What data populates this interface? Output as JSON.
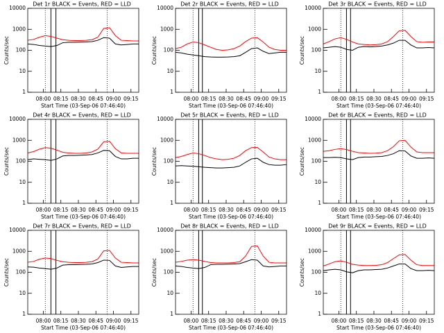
{
  "chart_data": [
    {
      "type": "line",
      "title": "Det 1r BLACK = Events, RED = LLD",
      "xlabel": "Start Time (03-Sep-06 07:46:40)",
      "ylabel": "Counts/sec",
      "ylog": true,
      "xlim": [
        0,
        5700
      ],
      "xticks": [
        {
          "value": 800,
          "label": "08:00"
        },
        {
          "value": 1700,
          "label": "08:15"
        },
        {
          "value": 2600,
          "label": "08:30"
        },
        {
          "value": 3500,
          "label": "08:45"
        },
        {
          "value": 4400,
          "label": "09:00"
        },
        {
          "value": 5300,
          "label": "09:15"
        }
      ],
      "ylim": [
        1,
        10000
      ],
      "yticks": [
        1,
        10,
        100,
        1000,
        10000
      ],
      "dotted_lines": [
        900,
        4080
      ],
      "solid_lines": [
        1190,
        1447
      ],
      "x": [
        0,
        300,
        600,
        900,
        1200,
        1500,
        1800,
        2100,
        2400,
        2700,
        3000,
        3300,
        3600,
        3900,
        4200,
        4500,
        4800,
        5100,
        5400,
        5700
      ],
      "series": [
        {
          "name": "BLACK",
          "color": "#000000",
          "values": [
            200,
            190,
            170,
            160,
            150,
            170,
            230,
            240,
            240,
            245,
            250,
            260,
            300,
            400,
            380,
            200,
            180,
            190,
            200,
            200
          ]
        },
        {
          "name": "RED",
          "color": "#ff0000",
          "values": [
            300,
            330,
            420,
            500,
            460,
            380,
            320,
            300,
            290,
            290,
            300,
            320,
            420,
            1100,
            1200,
            500,
            300,
            290,
            280,
            280
          ]
        }
      ]
    },
    {
      "type": "line",
      "title": "Det 2r BLACK = Events, RED = LLD",
      "xlabel": "Start Time (03-Sep-06 07:46:40)",
      "ylabel": "Counts/sec",
      "ylog": true,
      "xlim": [
        0,
        5700
      ],
      "xticks": [
        {
          "value": 800,
          "label": "08:00"
        },
        {
          "value": 1700,
          "label": "08:15"
        },
        {
          "value": 2600,
          "label": "08:30"
        },
        {
          "value": 3500,
          "label": "08:45"
        },
        {
          "value": 4400,
          "label": "09:00"
        },
        {
          "value": 5300,
          "label": "09:15"
        }
      ],
      "ylim": [
        1,
        10000
      ],
      "yticks": [
        1,
        10,
        100,
        1000,
        10000
      ],
      "dotted_lines": [
        900,
        4080
      ],
      "solid_lines": [
        1190,
        1380
      ],
      "x": [
        0,
        300,
        600,
        900,
        1200,
        1500,
        1800,
        2100,
        2400,
        2700,
        3000,
        3300,
        3600,
        3900,
        4200,
        4500,
        4800,
        5100,
        5400,
        5700
      ],
      "series": [
        {
          "name": "BLACK",
          "color": "#000000",
          "values": [
            80,
            75,
            65,
            60,
            55,
            50,
            48,
            47,
            47,
            48,
            50,
            55,
            80,
            120,
            130,
            90,
            70,
            75,
            80,
            80
          ]
        },
        {
          "name": "RED",
          "color": "#ff0000",
          "values": [
            120,
            140,
            200,
            250,
            230,
            180,
            140,
            110,
            100,
            105,
            120,
            160,
            260,
            380,
            400,
            250,
            140,
            110,
            100,
            100
          ]
        }
      ]
    },
    {
      "type": "line",
      "title": "Det 3r BLACK = Events, RED = LLD",
      "xlabel": "Start Time (03-Sep-06 07:46:40)",
      "ylabel": "Counts/sec",
      "ylog": true,
      "xlim": [
        0,
        5700
      ],
      "xticks": [
        {
          "value": 800,
          "label": "08:00"
        },
        {
          "value": 1700,
          "label": "08:15"
        },
        {
          "value": 2600,
          "label": "08:30"
        },
        {
          "value": 3500,
          "label": "08:45"
        },
        {
          "value": 4400,
          "label": "09:00"
        },
        {
          "value": 5300,
          "label": "09:15"
        }
      ],
      "ylim": [
        1,
        10000
      ],
      "yticks": [
        1,
        10,
        100,
        1000,
        10000
      ],
      "dotted_lines": [
        900,
        4080
      ],
      "solid_lines": [
        1190,
        1400
      ],
      "x": [
        0,
        300,
        600,
        900,
        1200,
        1500,
        1800,
        2100,
        2400,
        2700,
        3000,
        3300,
        3600,
        3900,
        4200,
        4500,
        4800,
        5100,
        5400,
        5700
      ],
      "series": [
        {
          "name": "BLACK",
          "color": "#000000",
          "values": [
            130,
            140,
            150,
            140,
            110,
            100,
            140,
            150,
            145,
            150,
            160,
            180,
            220,
            300,
            300,
            180,
            130,
            130,
            135,
            130
          ]
        },
        {
          "name": "RED",
          "color": "#ff0000",
          "values": [
            200,
            260,
            350,
            400,
            330,
            250,
            200,
            190,
            180,
            185,
            200,
            260,
            450,
            850,
            900,
            450,
            260,
            240,
            250,
            250
          ]
        }
      ]
    },
    {
      "type": "line",
      "title": "Det 4r BLACK = Events, RED = LLD",
      "xlabel": "Start Time (03-Sep-06 07:46:40)",
      "ylabel": "Counts/sec",
      "ylog": true,
      "xlim": [
        0,
        5700
      ],
      "xticks": [
        {
          "value": 800,
          "label": "08:00"
        },
        {
          "value": 1700,
          "label": "08:15"
        },
        {
          "value": 2600,
          "label": "08:30"
        },
        {
          "value": 3500,
          "label": "08:45"
        },
        {
          "value": 4400,
          "label": "09:00"
        },
        {
          "value": 5300,
          "label": "09:15"
        }
      ],
      "ylim": [
        1,
        10000
      ],
      "yticks": [
        1,
        10,
        100,
        1000,
        10000
      ],
      "dotted_lines": [
        900,
        4080
      ],
      "solid_lines": [
        1190,
        1447
      ],
      "x": [
        0,
        300,
        600,
        900,
        1200,
        1500,
        1800,
        2100,
        2400,
        2700,
        3000,
        3300,
        3600,
        3900,
        4200,
        4500,
        4800,
        5100,
        5400,
        5700
      ],
      "series": [
        {
          "name": "BLACK",
          "color": "#000000",
          "values": [
            120,
            130,
            125,
            120,
            110,
            130,
            180,
            190,
            190,
            195,
            200,
            210,
            250,
            330,
            320,
            170,
            130,
            130,
            140,
            140
          ]
        },
        {
          "name": "RED",
          "color": "#ff0000",
          "values": [
            250,
            290,
            380,
            450,
            420,
            340,
            270,
            250,
            240,
            240,
            250,
            280,
            380,
            850,
            900,
            400,
            250,
            240,
            240,
            240
          ]
        }
      ]
    },
    {
      "type": "line",
      "title": "Det 5r BLACK = Events, RED = LLD",
      "xlabel": "Start Time (03-Sep-06 07:46:40)",
      "ylabel": "Counts/sec",
      "ylog": true,
      "xlim": [
        0,
        5700
      ],
      "xticks": [
        {
          "value": 800,
          "label": "08:00"
        },
        {
          "value": 1700,
          "label": "08:15"
        },
        {
          "value": 2600,
          "label": "08:30"
        },
        {
          "value": 3500,
          "label": "08:45"
        },
        {
          "value": 4400,
          "label": "09:00"
        },
        {
          "value": 5300,
          "label": "09:15"
        }
      ],
      "ylim": [
        1,
        10000
      ],
      "yticks": [
        1,
        10,
        100,
        1000,
        10000
      ],
      "dotted_lines": [
        900,
        4080
      ],
      "solid_lines": [
        1190,
        1380
      ],
      "x": [
        0,
        300,
        600,
        900,
        1200,
        1500,
        1800,
        2100,
        2400,
        2700,
        3000,
        3300,
        3600,
        3900,
        4200,
        4500,
        4800,
        5100,
        5400,
        5700
      ],
      "series": [
        {
          "name": "BLACK",
          "color": "#000000",
          "values": [
            60,
            62,
            60,
            58,
            55,
            52,
            50,
            48,
            48,
            50,
            52,
            60,
            90,
            130,
            140,
            90,
            70,
            65,
            65,
            70
          ]
        },
        {
          "name": "RED",
          "color": "#ff0000",
          "values": [
            150,
            170,
            210,
            250,
            230,
            190,
            150,
            130,
            120,
            125,
            140,
            190,
            320,
            450,
            460,
            280,
            160,
            130,
            120,
            120
          ]
        }
      ]
    },
    {
      "type": "line",
      "title": "Det 6r BLACK = Events, RED = LLD",
      "xlabel": "Start Time (03-Sep-06 07:46:40)",
      "ylabel": "Counts/sec",
      "ylog": true,
      "xlim": [
        0,
        5700
      ],
      "xticks": [
        {
          "value": 800,
          "label": "08:00"
        },
        {
          "value": 1700,
          "label": "08:15"
        },
        {
          "value": 2600,
          "label": "08:30"
        },
        {
          "value": 3500,
          "label": "08:45"
        },
        {
          "value": 4400,
          "label": "09:00"
        },
        {
          "value": 5300,
          "label": "09:15"
        }
      ],
      "ylim": [
        1,
        10000
      ],
      "yticks": [
        1,
        10,
        100,
        1000,
        10000
      ],
      "dotted_lines": [
        900,
        4080
      ],
      "solid_lines": [
        1190,
        1400
      ],
      "x": [
        0,
        300,
        600,
        900,
        1200,
        1500,
        1800,
        2100,
        2400,
        2700,
        3000,
        3300,
        3600,
        3900,
        4200,
        4500,
        4800,
        5100,
        5400,
        5700
      ],
      "series": [
        {
          "name": "BLACK",
          "color": "#000000",
          "values": [
            150,
            150,
            155,
            150,
            130,
            120,
            150,
            160,
            160,
            165,
            170,
            190,
            230,
            320,
            310,
            180,
            140,
            140,
            145,
            140
          ]
        },
        {
          "name": "RED",
          "color": "#ff0000",
          "values": [
            300,
            320,
            370,
            400,
            360,
            300,
            260,
            250,
            240,
            245,
            260,
            320,
            500,
            950,
            1000,
            480,
            280,
            260,
            260,
            260
          ]
        }
      ]
    },
    {
      "type": "line",
      "title": "Det 7r BLACK = Events, RED = LLD",
      "xlabel": "Start Time (03-Sep-06 07:46:40)",
      "ylabel": "Counts/sec",
      "ylog": true,
      "xlim": [
        0,
        5700
      ],
      "xticks": [
        {
          "value": 800,
          "label": "08:00"
        },
        {
          "value": 1700,
          "label": "08:15"
        },
        {
          "value": 2600,
          "label": "08:30"
        },
        {
          "value": 3500,
          "label": "08:45"
        },
        {
          "value": 4400,
          "label": "09:00"
        },
        {
          "value": 5300,
          "label": "09:15"
        }
      ],
      "ylim": [
        1,
        10000
      ],
      "yticks": [
        1,
        10,
        100,
        1000,
        10000
      ],
      "dotted_lines": [
        900,
        4080
      ],
      "solid_lines": [
        1190,
        1447
      ],
      "x": [
        0,
        300,
        600,
        900,
        1200,
        1500,
        1800,
        2100,
        2400,
        2700,
        3000,
        3300,
        3600,
        3900,
        4200,
        4500,
        4800,
        5100,
        5400,
        5700
      ],
      "series": [
        {
          "name": "BLACK",
          "color": "#000000",
          "values": [
            180,
            175,
            160,
            150,
            140,
            160,
            220,
            230,
            230,
            235,
            240,
            250,
            290,
            380,
            370,
            200,
            170,
            180,
            190,
            190
          ]
        },
        {
          "name": "RED",
          "color": "#ff0000",
          "values": [
            300,
            330,
            420,
            480,
            450,
            370,
            320,
            300,
            290,
            290,
            300,
            320,
            430,
            1050,
            1100,
            480,
            300,
            290,
            280,
            280
          ]
        }
      ]
    },
    {
      "type": "line",
      "title": "Det 8r BLACK = Events, RED = LLD",
      "xlabel": "Start Time (03-Sep-06 07:46:40)",
      "ylabel": "Counts/sec",
      "ylog": true,
      "xlim": [
        0,
        5700
      ],
      "xticks": [
        {
          "value": 800,
          "label": "08:00"
        },
        {
          "value": 1700,
          "label": "08:15"
        },
        {
          "value": 2600,
          "label": "08:30"
        },
        {
          "value": 3500,
          "label": "08:45"
        },
        {
          "value": 4400,
          "label": "09:00"
        },
        {
          "value": 5300,
          "label": "09:15"
        }
      ],
      "ylim": [
        1,
        10000
      ],
      "yticks": [
        1,
        10,
        100,
        1000,
        10000
      ],
      "dotted_lines": [
        900,
        4080
      ],
      "solid_lines": [
        1190,
        1380
      ],
      "x": [
        0,
        300,
        600,
        900,
        1200,
        1500,
        1800,
        2100,
        2400,
        2700,
        3000,
        3300,
        3600,
        3900,
        4200,
        4500,
        4800,
        5100,
        5400,
        5700
      ],
      "series": [
        {
          "name": "BLACK",
          "color": "#000000",
          "values": [
            200,
            190,
            170,
            160,
            150,
            170,
            230,
            240,
            240,
            245,
            250,
            260,
            320,
            400,
            380,
            200,
            180,
            190,
            200,
            200
          ]
        },
        {
          "name": "RED",
          "color": "#ff0000",
          "values": [
            300,
            330,
            380,
            400,
            380,
            330,
            290,
            280,
            280,
            280,
            290,
            320,
            600,
            1700,
            1800,
            600,
            300,
            280,
            280,
            280
          ]
        }
      ]
    },
    {
      "type": "line",
      "title": "Det 9r BLACK = Events, RED = LLD",
      "xlabel": "Start Time (03-Sep-06 07:46:40)",
      "ylabel": "Counts/sec",
      "ylog": true,
      "xlim": [
        0,
        5700
      ],
      "xticks": [
        {
          "value": 800,
          "label": "08:00"
        },
        {
          "value": 1700,
          "label": "08:15"
        },
        {
          "value": 2600,
          "label": "08:30"
        },
        {
          "value": 3500,
          "label": "08:45"
        },
        {
          "value": 4400,
          "label": "09:00"
        },
        {
          "value": 5300,
          "label": "09:15"
        }
      ],
      "ylim": [
        1,
        10000
      ],
      "yticks": [
        1,
        10,
        100,
        1000,
        10000
      ],
      "dotted_lines": [
        900,
        4080
      ],
      "solid_lines": [
        1190,
        1400
      ],
      "x": [
        0,
        300,
        600,
        900,
        1200,
        1500,
        1800,
        2100,
        2400,
        2700,
        3000,
        3300,
        3600,
        3900,
        4200,
        4500,
        4800,
        5100,
        5400,
        5700
      ],
      "series": [
        {
          "name": "BLACK",
          "color": "#000000",
          "values": [
            120,
            130,
            140,
            130,
            105,
            95,
            120,
            130,
            130,
            135,
            140,
            160,
            200,
            250,
            250,
            150,
            120,
            120,
            125,
            120
          ]
        },
        {
          "name": "RED",
          "color": "#ff0000",
          "values": [
            200,
            250,
            320,
            350,
            300,
            240,
            220,
            210,
            210,
            215,
            230,
            290,
            450,
            680,
            700,
            380,
            230,
            210,
            210,
            210
          ]
        }
      ]
    }
  ]
}
